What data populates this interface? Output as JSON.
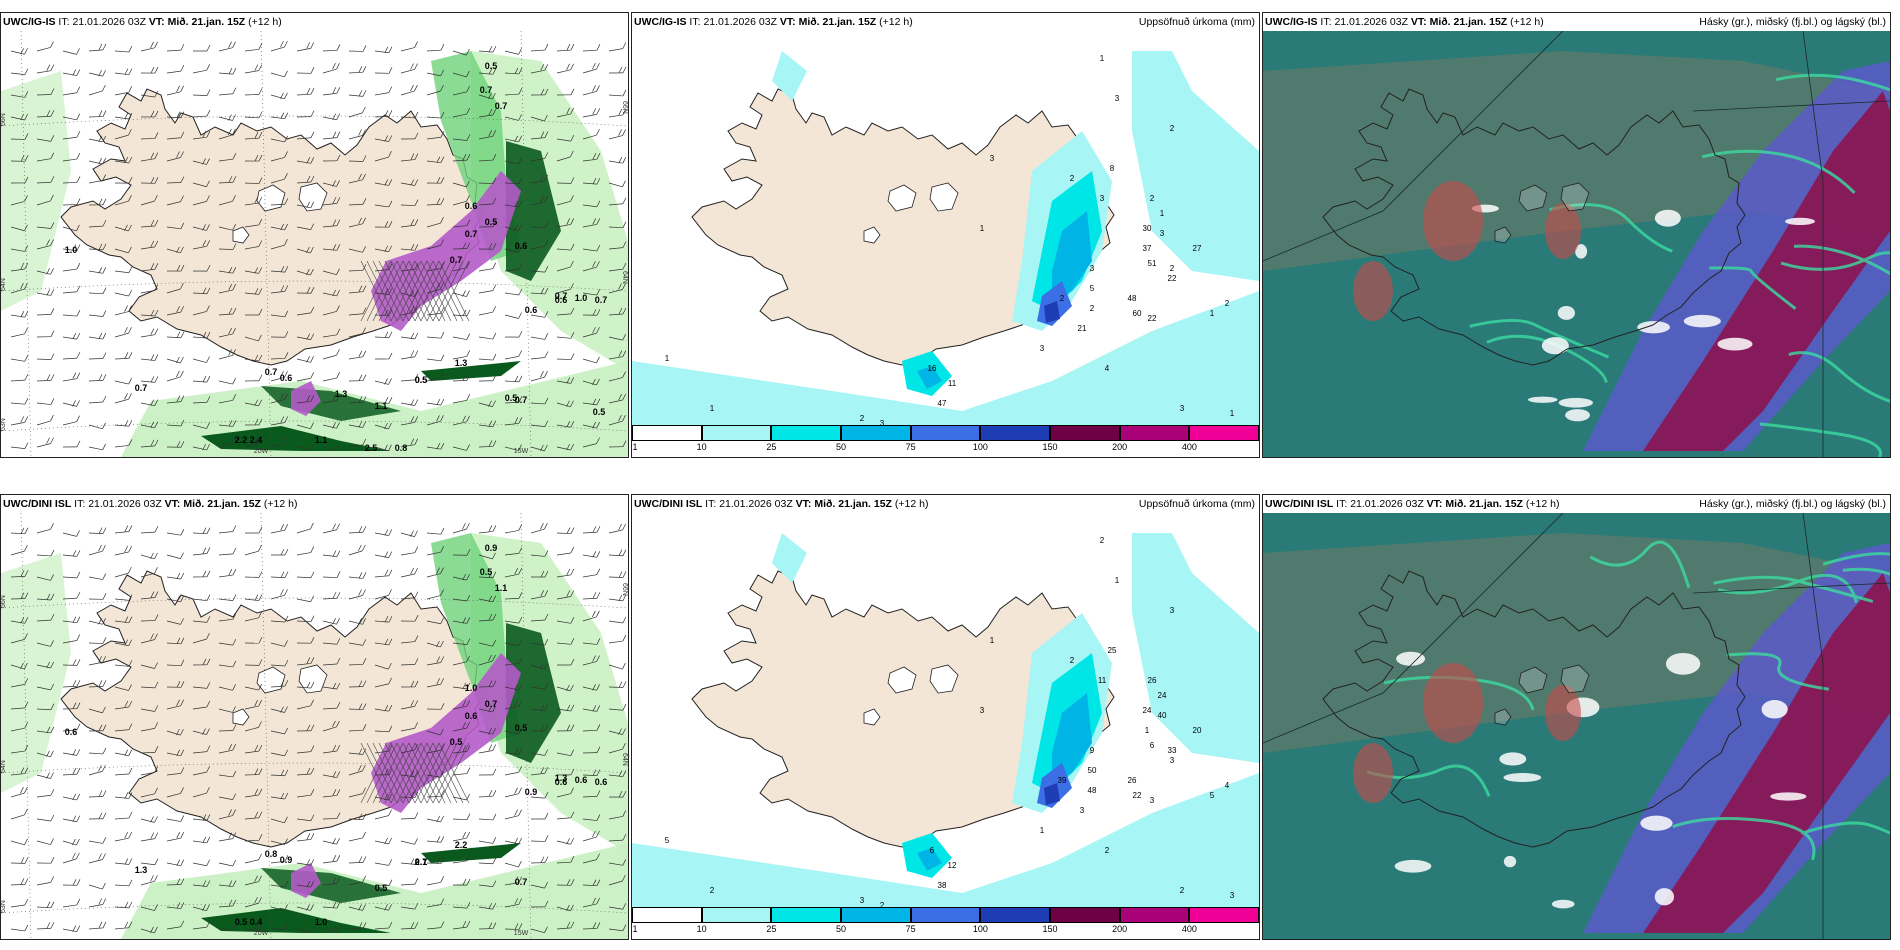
{
  "panels": [
    {
      "id": "p1",
      "type": "wind",
      "model": "UWC/IG-IS",
      "it_label": "IT:",
      "it_value": "21.01.2026 03Z",
      "vt_label": "VT:",
      "vt_value": "Mið. 21.jan. 15Z",
      "lead": "(+12 h)",
      "right_title": "",
      "grid": {
        "lat_labels": [
          "66N",
          "64N",
          "63N"
        ],
        "lon_labels": [
          "20W",
          "15W"
        ],
        "lat_labels_right": [
          "66N",
          "64N"
        ]
      },
      "labels": [
        "0.5",
        "0.7",
        "0.7",
        "1.0",
        "0.7",
        "0.6",
        "0.5",
        "0.7",
        "0.6",
        "0.7",
        "1.0",
        "0.6",
        "0.6",
        "0.7",
        "0.7",
        "0.6",
        "0.5",
        "0.7",
        "1.3",
        "0.5",
        "0.7",
        "1.1",
        "2.2",
        "2.4",
        "1.1",
        "2.5",
        "0.8",
        "0.5",
        "0.5",
        "1.3"
      ]
    },
    {
      "id": "p2",
      "type": "precip",
      "model": "UWC/IG-IS",
      "it_label": "IT:",
      "it_value": "21.01.2026 03Z",
      "vt_label": "VT:",
      "vt_value": "Mið. 21.jan. 15Z",
      "lead": "(+12 h)",
      "right_title": "Uppsöfnuð úrkoma (mm)",
      "labels": [
        "1",
        "3",
        "2",
        "3",
        "1",
        "2",
        "3",
        "8",
        "2",
        "1",
        "3",
        "2",
        "27",
        "30",
        "37",
        "51",
        "22",
        "2",
        "1",
        "3",
        "5",
        "2",
        "2",
        "48",
        "60",
        "22",
        "21",
        "16",
        "11",
        "47",
        "2",
        "3",
        "2",
        "2",
        "1",
        "1",
        "1",
        "3",
        "3",
        "4",
        "3",
        "2",
        "1",
        "1"
      ],
      "colorbar": {
        "ticks": [
          "1",
          "10",
          "25",
          "50",
          "75",
          "100",
          "150",
          "200",
          "400"
        ]
      }
    },
    {
      "id": "p3",
      "type": "cloud",
      "model": "UWC/IG-IS",
      "it_label": "IT:",
      "it_value": "21.01.2026 03Z",
      "vt_label": "VT:",
      "vt_value": "Mið. 21.jan. 15Z",
      "lead": "(+12 h)",
      "right_title": "Hásky (gr.), miðský (fj.bl.) og lágský (bl.)"
    },
    {
      "id": "p4",
      "type": "wind",
      "model": "UWC/DINI ISL",
      "it_label": "IT:",
      "it_value": "21.01.2026 03Z",
      "vt_label": "VT:",
      "vt_value": "Mið. 21.jan. 15Z",
      "lead": "(+12 h)",
      "right_title": "",
      "grid": {
        "lat_labels": [
          "66N",
          "64N",
          "63N"
        ],
        "lon_labels": [
          "20W",
          "15W"
        ],
        "lat_labels_right": [
          "66N",
          "64N"
        ]
      },
      "labels": [
        "0.9",
        "0.5",
        "1.1",
        "0.6",
        "0.5",
        "1.0",
        "0.7",
        "0.6",
        "0.5",
        "1.3",
        "0.6",
        "0.9",
        "0.6",
        "0.6",
        "0.8",
        "0.9",
        "0.7",
        "1.3",
        "2.2",
        "2.1",
        "0.7",
        "0.5",
        "0.5",
        "0.4",
        "1.0"
      ]
    },
    {
      "id": "p5",
      "type": "precip",
      "model": "UWC/DINI ISL",
      "it_label": "IT:",
      "it_value": "21.01.2026 03Z",
      "vt_label": "VT:",
      "vt_value": "Mið. 21.jan. 15Z",
      "lead": "(+12 h)",
      "right_title": "Uppsöfnuð úrkoma (mm)",
      "labels": [
        "2",
        "1",
        "3",
        "1",
        "3",
        "2",
        "11",
        "25",
        "26",
        "24",
        "40",
        "33",
        "20",
        "24",
        "1",
        "6",
        "3",
        "4",
        "5",
        "9",
        "50",
        "39",
        "48",
        "26",
        "22",
        "3",
        "3",
        "6",
        "12",
        "38",
        "2",
        "2",
        "4",
        "3",
        "3",
        "2",
        "3",
        "2",
        "1",
        "2",
        "2",
        "1",
        "5"
      ],
      "colorbar": {
        "ticks": [
          "1",
          "10",
          "25",
          "50",
          "75",
          "100",
          "150",
          "200",
          "400"
        ]
      }
    },
    {
      "id": "p6",
      "type": "cloud",
      "model": "UWC/DINI ISL",
      "it_label": "IT:",
      "it_value": "21.01.2026 03Z",
      "vt_label": "VT:",
      "vt_value": "Mið. 21.jan. 15Z",
      "lead": "(+12 h)",
      "right_title": "Hásky (gr.), miðský (fj.bl.) og lágský (bl.)"
    }
  ],
  "colors": {
    "land": "#f3e6d6",
    "coast": "#222222",
    "precip": [
      "#ffffff",
      "#a8f5f5",
      "#00e6e6",
      "#00b4e6",
      "#3c6ee6",
      "#1e3cb4",
      "#6e0046",
      "#aa0078",
      "#f00096",
      "#f5b4f5"
    ],
    "wind_green_light": "#c8f0c0",
    "wind_green": "#6ed27a",
    "wind_green_dark": "#0a5a1e",
    "wind_purple": "#b45ac8",
    "cloud_high": "#5a7a6a",
    "cloud_mid": "#5a5ac8",
    "cloud_low": "#8c1450",
    "cloud_sea": "#2a7a78",
    "cloud_edge": "#3cdca0"
  }
}
